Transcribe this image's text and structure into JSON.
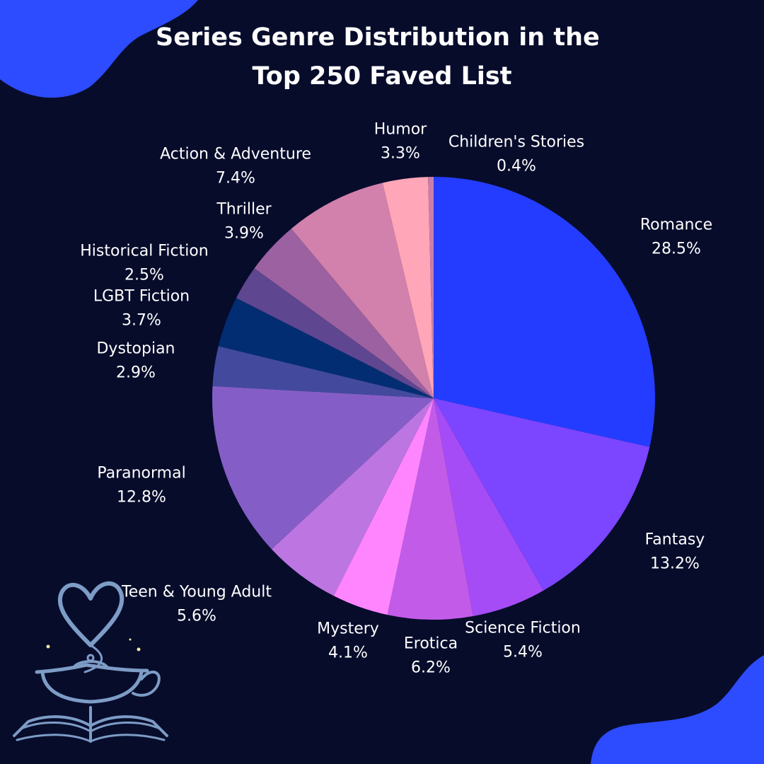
{
  "chart_data": {
    "type": "pie",
    "title": "Series Genre Distribution in the\nTop 250 Faved List",
    "start_angle_deg": 0,
    "direction": "clockwise",
    "slices": [
      {
        "name": "Romance",
        "value": 28.5,
        "display": "28.5%",
        "color": "#243cff"
      },
      {
        "name": "Fantasy",
        "value": 13.2,
        "display": "13.2%",
        "color": "#7c45ff"
      },
      {
        "name": "Science Fiction",
        "value": 5.4,
        "display": "5.4%",
        "color": "#a64cf6"
      },
      {
        "name": "Erotica",
        "value": 6.2,
        "display": "6.2%",
        "color": "#c35be9"
      },
      {
        "name": "Mystery",
        "value": 4.1,
        "display": "4.1%",
        "color": "#ff85ff"
      },
      {
        "name": "Teen & Young Adult",
        "value": 5.6,
        "display": "5.6%",
        "color": "#bd75e2"
      },
      {
        "name": "Paranormal",
        "value": 12.8,
        "display": "12.8%",
        "color": "#845ec6"
      },
      {
        "name": "Dystopian",
        "value": 2.9,
        "display": "2.9%",
        "color": "#434a9e"
      },
      {
        "name": "LGBT Fiction",
        "value": 3.7,
        "display": "3.7%",
        "color": "#022d73"
      },
      {
        "name": "Historical Fiction",
        "value": 2.5,
        "display": "2.5%",
        "color": "#5e4690"
      },
      {
        "name": "Thriller",
        "value": 3.9,
        "display": "3.9%",
        "color": "#9c61a0"
      },
      {
        "name": "Action & Adventure",
        "value": 7.4,
        "display": "7.4%",
        "color": "#d281ac"
      },
      {
        "name": "Humor",
        "value": 3.3,
        "display": "3.3%",
        "color": "#ffa6b8"
      },
      {
        "name": "Children's Stories",
        "value": 0.4,
        "display": "0.4%",
        "color": "#cc7eaa"
      }
    ]
  },
  "colors": {
    "background": "#070c2b",
    "blob": "#2d4bff",
    "logo": "#7d9cc6"
  },
  "decor": {
    "logo_icon": "teapot-heart-book-logo-icon"
  }
}
